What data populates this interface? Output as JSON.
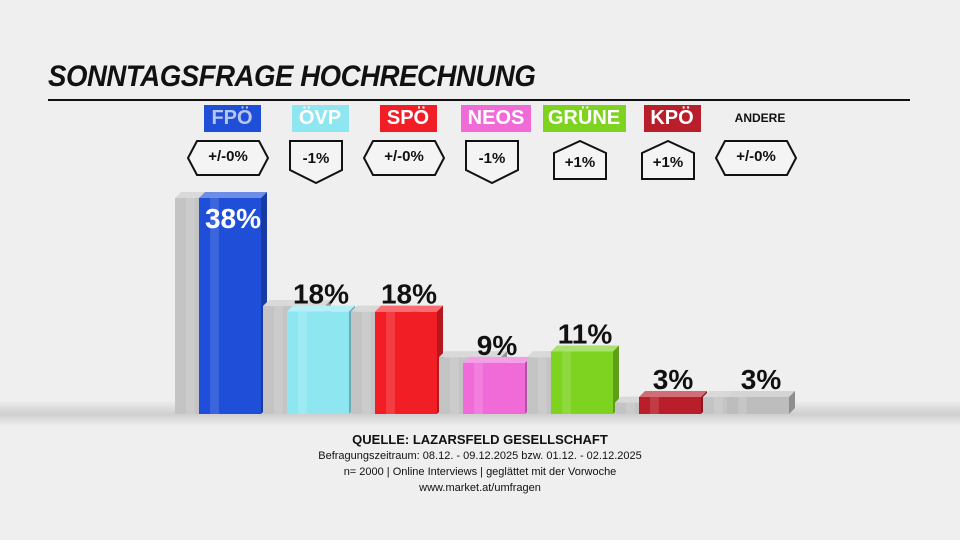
{
  "title": "SONNTAGSFRAGE HOCHRECHNUNG",
  "colors": {
    "FPÖ": "#1f4fd8",
    "ÖVP": "#8ee6f0",
    "SPÖ": "#f21e26",
    "NEOS": "#f06bd8",
    "GRÜNE": "#7ed321",
    "KPÖ": "#b81f2a",
    "ANDERE": "#bdbdbd",
    "previous": "#c4c4c4"
  },
  "parties": [
    {
      "name": "FPÖ",
      "change": "+/-0%",
      "change_shape": "hex",
      "value_label": "38%"
    },
    {
      "name": "ÖVP",
      "change": "-1%",
      "change_shape": "down",
      "value_label": "18%"
    },
    {
      "name": "SPÖ",
      "change": "+/-0%",
      "change_shape": "hex",
      "value_label": "18%"
    },
    {
      "name": "NEOS",
      "change": "-1%",
      "change_shape": "down",
      "value_label": "9%"
    },
    {
      "name": "GRÜNE",
      "change": "+1%",
      "change_shape": "up",
      "value_label": "11%"
    },
    {
      "name": "KPÖ",
      "change": "+1%",
      "change_shape": "up",
      "value_label": "3%"
    },
    {
      "name": "ANDERE",
      "change": "+/-0%",
      "change_shape": "hex",
      "value_label": "3%"
    }
  ],
  "chart_data": {
    "type": "bar",
    "title": "SONNTAGSFRAGE HOCHRECHNUNG",
    "categories": [
      "FPÖ",
      "ÖVP",
      "SPÖ",
      "NEOS",
      "GRÜNE",
      "KPÖ",
      "ANDERE"
    ],
    "series": [
      {
        "values": [
          38,
          19,
          18,
          10,
          10,
          2,
          3
        ]
      },
      {
        "values": [
          38,
          18,
          18,
          9,
          11,
          3,
          3
        ]
      }
    ],
    "change_labels": [
      "+/-0%",
      "-1%",
      "+/-0%",
      "-1%",
      "+1%",
      "+1%",
      "+/-0%"
    ],
    "ylim": [
      0,
      40
    ],
    "grid": false,
    "legend": "none"
  },
  "source": {
    "line1": "QUELLE: LAZARSFELD GESELLSCHAFT",
    "line2": "Befragungszeitraum:  08.12. - 09.12.2025  bzw. 01.12. - 02.12.2025",
    "line3": "n= 2000 | Online Interviews | geglättet mit der Vorwoche",
    "line4": "www.market.at/umfragen"
  }
}
